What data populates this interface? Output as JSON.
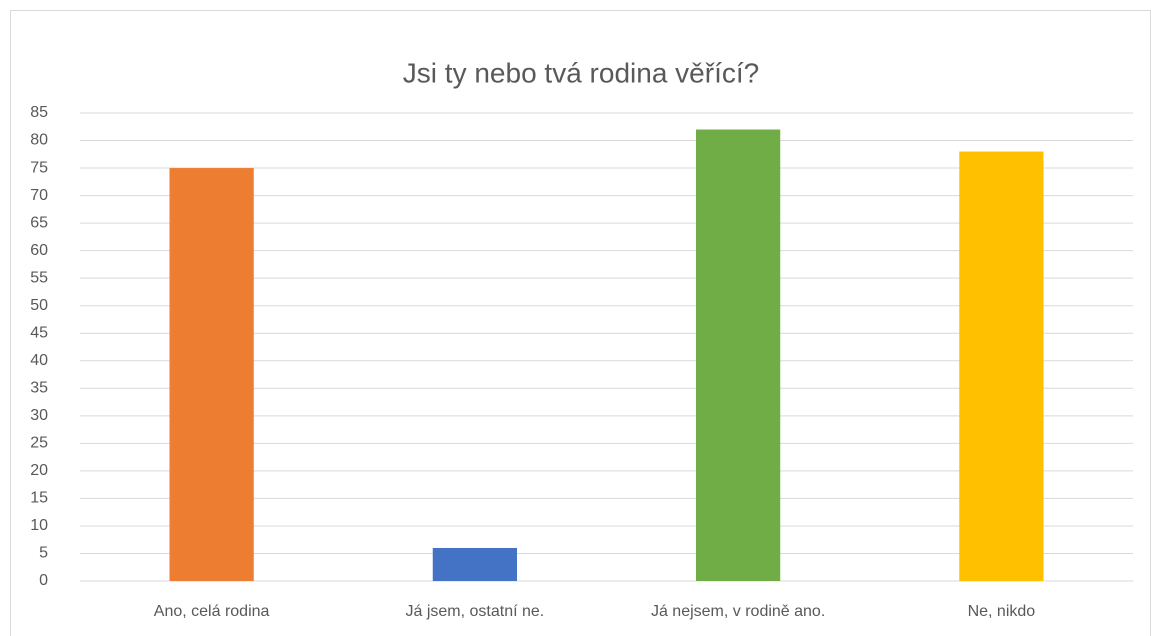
{
  "chart_data": {
    "type": "bar",
    "title": "Jsi ty nebo tvá rodina věřící?",
    "categories": [
      "Ano, celá rodina",
      "Já jsem, ostatní ne.",
      "Já nejsem, v rodině ano.",
      "Ne, nikdo"
    ],
    "values": [
      75,
      6,
      82,
      78
    ],
    "colors": [
      "#ed7d31",
      "#4472c4",
      "#70ad47",
      "#ffc000"
    ],
    "ylim": [
      0,
      85
    ],
    "yticks": [
      0,
      5,
      10,
      15,
      20,
      25,
      30,
      35,
      40,
      45,
      50,
      55,
      60,
      65,
      70,
      75,
      80,
      85
    ],
    "grid": true
  }
}
